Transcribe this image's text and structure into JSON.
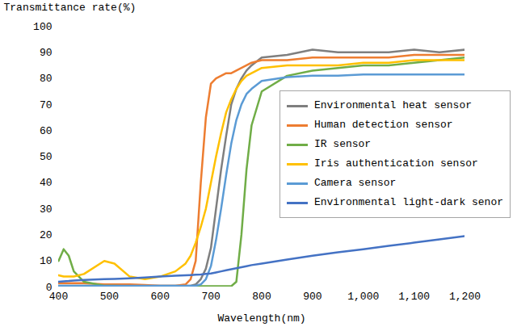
{
  "chart_data": {
    "type": "line",
    "x_label": "Wavelength(nm)",
    "y_label": "Transmittance rate(%)",
    "x": [
      400,
      410,
      420,
      430,
      450,
      490,
      510,
      540,
      570,
      600,
      630,
      650,
      660,
      670,
      680,
      690,
      700,
      710,
      720,
      730,
      740,
      750,
      760,
      770,
      780,
      800,
      850,
      900,
      950,
      1000,
      1050,
      1100,
      1150,
      1200
    ],
    "series": [
      {
        "name": "Environmental heat sensor",
        "color": "#7f7f7f",
        "values": [
          0.5,
          0.5,
          0.5,
          0.5,
          0.5,
          0.5,
          0.5,
          0.5,
          0.5,
          0.5,
          0.5,
          0.5,
          0.5,
          1,
          3,
          7,
          15,
          30,
          45,
          58,
          70,
          76,
          80,
          83,
          85,
          88,
          89,
          91,
          90,
          90,
          90,
          91,
          90,
          91
        ]
      },
      {
        "name": "Human detection sensor",
        "color": "#ed7d31",
        "values": [
          1.5,
          1.5,
          1.5,
          1.5,
          1.5,
          1,
          1,
          1,
          0.8,
          0.5,
          0.5,
          1,
          3,
          10,
          40,
          65,
          78,
          80,
          81,
          82,
          82,
          83,
          84,
          85,
          86,
          87,
          87,
          88,
          88,
          88,
          88,
          89,
          89,
          89
        ]
      },
      {
        "name": "IR sensor",
        "color": "#70ad47",
        "values": [
          10,
          14.5,
          12,
          6,
          2,
          0.5,
          0.5,
          0.3,
          0.3,
          0.3,
          0.3,
          0.3,
          0.3,
          0.3,
          0.3,
          0.3,
          0.3,
          0.3,
          0.3,
          0.3,
          0.3,
          2,
          20,
          45,
          62,
          75,
          81,
          83,
          84,
          85,
          85,
          86,
          87,
          88
        ]
      },
      {
        "name": "Iris authentication sensor",
        "color": "#ffc000",
        "values": [
          4.5,
          4,
          4,
          4,
          5,
          10,
          9,
          4,
          3,
          4,
          6,
          9,
          12,
          17,
          23,
          30,
          40,
          50,
          59,
          67,
          72,
          76,
          79,
          81,
          82,
          84,
          85,
          85,
          85,
          86,
          86,
          87,
          87,
          87
        ]
      },
      {
        "name": "Camera sensor",
        "color": "#5b9bd5",
        "values": [
          0.5,
          0.5,
          0.5,
          0.5,
          0.5,
          0.5,
          0.5,
          0.5,
          0.5,
          0.5,
          0.5,
          0.5,
          0.5,
          0.5,
          1,
          3,
          8,
          18,
          30,
          43,
          55,
          64,
          70,
          74,
          76,
          79,
          80.5,
          81,
          81,
          81.5,
          81.5,
          81.5,
          81.5,
          81.5
        ]
      },
      {
        "name": "Environmental light-dark senor",
        "color": "#4472c4",
        "values": [
          2,
          2.2,
          2.3,
          2.5,
          2.7,
          3,
          3.1,
          3.3,
          3.6,
          4,
          4.3,
          4.5,
          4.6,
          4.7,
          4.8,
          5,
          5.2,
          5.6,
          6,
          6.4,
          6.8,
          7.2,
          7.6,
          8,
          8.4,
          9,
          10.5,
          12,
          13.3,
          14.5,
          15.8,
          17,
          18.3,
          19.5
        ]
      }
    ],
    "xlim": [
      400,
      1200
    ],
    "ylim": [
      0,
      100
    ],
    "xticks": [
      400,
      500,
      600,
      700,
      800,
      900,
      1000,
      1100,
      1200
    ],
    "yticks": [
      0,
      10,
      20,
      30,
      40,
      50,
      60,
      70,
      80,
      90,
      100
    ],
    "grid": false,
    "legend": "right"
  }
}
